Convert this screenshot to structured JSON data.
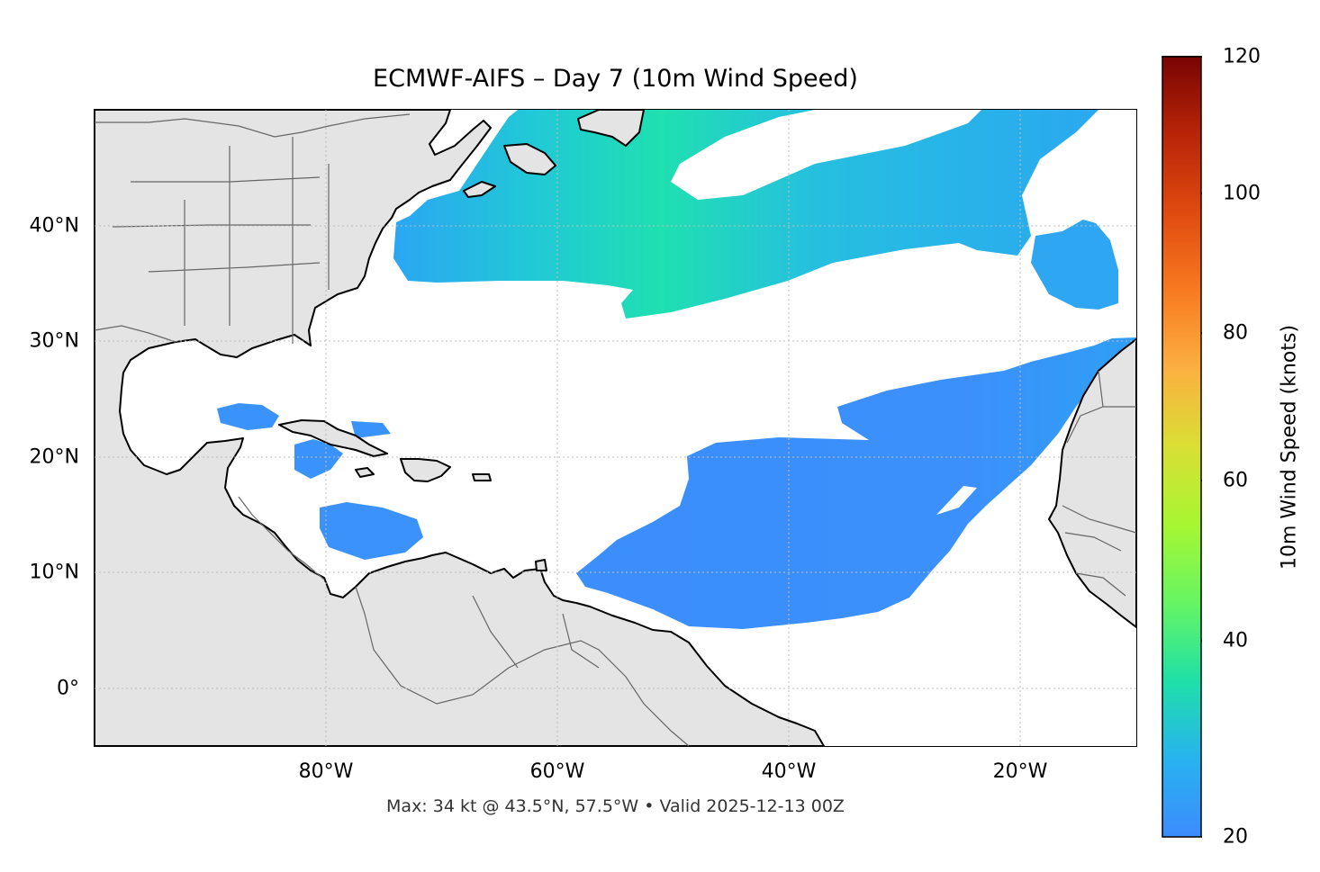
{
  "title": "ECMWF-AIFS – Day 7 (10m Wind Speed)",
  "footer": "Max: 34 kt @ 43.5°N, 57.5°W • Valid 2025-12-13 00Z",
  "map": {
    "extent": {
      "lon_min": -100,
      "lon_max": -10,
      "lat_min": -5,
      "lat_max": 50
    },
    "x_ticks": [
      {
        "lon": -80,
        "label": "80°W"
      },
      {
        "lon": -60,
        "label": "60°W"
      },
      {
        "lon": -40,
        "label": "40°W"
      },
      {
        "lon": -20,
        "label": "20°W"
      }
    ],
    "y_ticks": [
      {
        "lat": 40,
        "label": "40°N"
      },
      {
        "lat": 30,
        "label": "30°N"
      },
      {
        "lat": 20,
        "label": "20°N"
      },
      {
        "lat": 10,
        "label": "10°N"
      },
      {
        "lat": 0,
        "label": "0°"
      }
    ],
    "land_color": "#e4e4e4",
    "coast_color": "#000000",
    "border_color": "#666666",
    "grid": true
  },
  "colorbar": {
    "label": "10m Wind Speed (knots)",
    "min": 20,
    "max": 120,
    "ticks": [
      "20",
      "40",
      "60",
      "80",
      "100",
      "120"
    ],
    "extend": "max",
    "colors": [
      "#3d8bfd",
      "#27b3ef",
      "#1fe0a8",
      "#66f563",
      "#a7f632",
      "#d9df34",
      "#fbb040",
      "#f87a20",
      "#e04a10",
      "#b82508",
      "#7a0403"
    ]
  },
  "wind_max_location": {
    "lat": 43.5,
    "lon": -57.5,
    "value_kt": 34
  }
}
